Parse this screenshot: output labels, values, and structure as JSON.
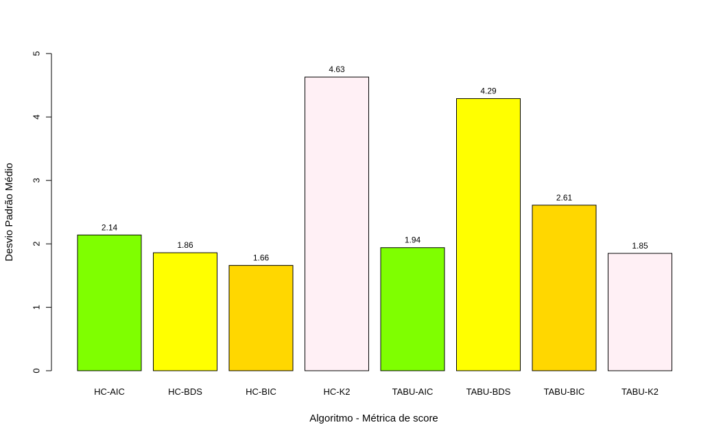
{
  "chart_data": {
    "type": "bar",
    "xlabel": "Algoritmo - Métrica de score",
    "ylabel": "Desvio Padrão Médio",
    "ylim": [
      0,
      5
    ],
    "yticks": [
      "0",
      "1",
      "2",
      "3",
      "4",
      "5"
    ],
    "categories": [
      "HC-AIC",
      "HC-BDS",
      "HC-BIC",
      "HC-K2",
      "TABU-AIC",
      "TABU-BDS",
      "TABU-BIC",
      "TABU-K2"
    ],
    "values": [
      2.14,
      1.86,
      1.66,
      4.63,
      1.94,
      4.29,
      2.61,
      1.85
    ],
    "value_labels": [
      "2.14",
      "1.86",
      "1.66",
      "4.63",
      "1.94",
      "4.29",
      "2.61",
      "1.85"
    ],
    "colors": [
      "#7FFF00",
      "#FFFF00",
      "#FFD700",
      "#FFF0F5",
      "#7FFF00",
      "#FFFF00",
      "#FFD700",
      "#FFF0F5"
    ],
    "grid": false,
    "legend": "none"
  }
}
